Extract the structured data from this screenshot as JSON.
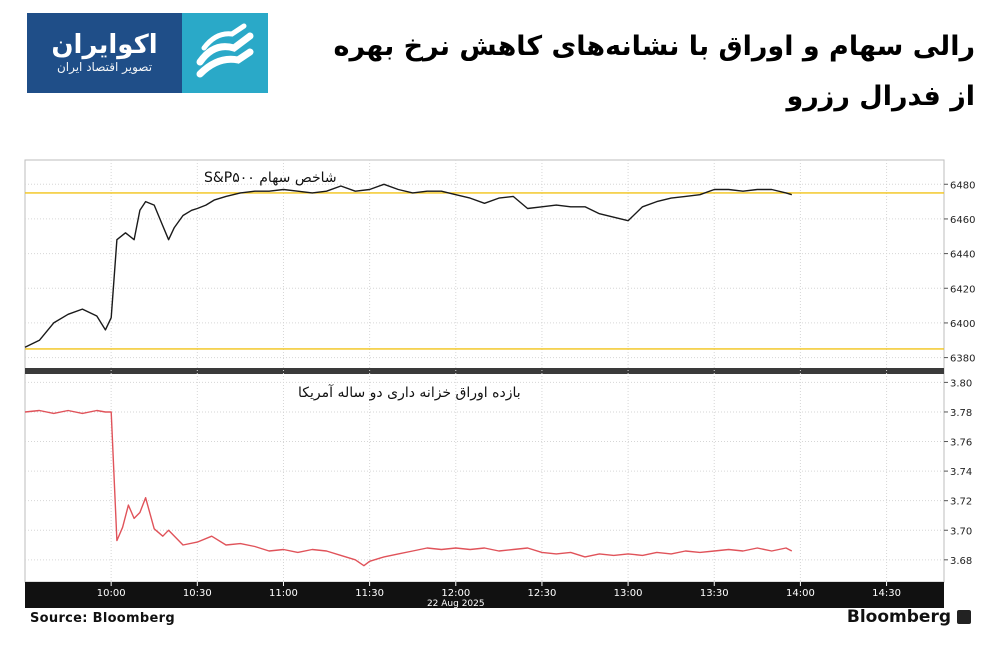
{
  "logo": {
    "name": "اکوایران",
    "tagline": "تصویر اقتصاد ایران"
  },
  "headline": {
    "line1": "رالی سهام و اوراق با نشانه‌های کاهش نرخ بهره",
    "line2": "از فدرال رزرو"
  },
  "footer": {
    "source": "Source:  Bloomberg",
    "brand": "Bloomberg"
  },
  "colors": {
    "spx_line": "#1a1a1a",
    "yield_line": "#e0535a",
    "reference_line": "#f2c418",
    "axis_bar": "#111111",
    "logo_dark": "#1f4e88",
    "logo_light": "#2aa9c8"
  },
  "chart_data": [
    {
      "type": "line",
      "title": "شاخص سهام S&P۵۰۰",
      "x_label": "22 Aug 2025",
      "x_ticks": [
        "10:00",
        "10:30",
        "11:00",
        "11:30",
        "12:00",
        "12:30",
        "13:00",
        "13:30",
        "14:00",
        "14:30"
      ],
      "ylim": [
        6374,
        6494
      ],
      "y_ticks": [
        6380,
        6400,
        6420,
        6440,
        6460,
        6480
      ],
      "reference_lines": [
        6475,
        6385
      ],
      "grid": true,
      "series": [
        {
          "x": [
            "09:30",
            "09:35",
            "09:40",
            "09:45",
            "09:50",
            "09:55",
            "09:58",
            "10:00",
            "10:02",
            "10:05",
            "10:08",
            "10:10",
            "10:12",
            "10:15",
            "10:18",
            "10:20",
            "10:22",
            "10:25",
            "10:28",
            "10:30",
            "10:33",
            "10:36",
            "10:40",
            "10:45",
            "10:50",
            "10:55",
            "11:00",
            "11:05",
            "11:10",
            "11:15",
            "11:20",
            "11:25",
            "11:30",
            "11:35",
            "11:40",
            "11:45",
            "11:50",
            "11:55",
            "12:00",
            "12:05",
            "12:10",
            "12:15",
            "12:20",
            "12:25",
            "12:30",
            "12:35",
            "12:40",
            "12:45",
            "12:50",
            "12:55",
            "13:00",
            "13:05",
            "13:10",
            "13:15",
            "13:20",
            "13:25",
            "13:30",
            "13:35",
            "13:40",
            "13:45",
            "13:50",
            "13:55",
            "13:57"
          ],
          "values": [
            6386,
            6390,
            6400,
            6405,
            6408,
            6404,
            6396,
            6403,
            6448,
            6452,
            6448,
            6465,
            6470,
            6468,
            6456,
            6448,
            6455,
            6462,
            6465,
            6466,
            6468,
            6471,
            6473,
            6475,
            6476,
            6476,
            6477,
            6476,
            6475,
            6476,
            6479,
            6476,
            6477,
            6480,
            6477,
            6475,
            6476,
            6476,
            6474,
            6472,
            6469,
            6472,
            6473,
            6466,
            6467,
            6468,
            6467,
            6467,
            6463,
            6461,
            6459,
            6467,
            6470,
            6472,
            6473,
            6474,
            6477,
            6477,
            6476,
            6477,
            6477,
            6475,
            6474
          ]
        }
      ]
    },
    {
      "type": "line",
      "title": "بازده اوراق خزانه داری دو ساله آمریکا",
      "x_label": "22 Aug 2025",
      "x_ticks": [
        "10:00",
        "10:30",
        "11:00",
        "11:30",
        "12:00",
        "12:30",
        "13:00",
        "13:30",
        "14:00",
        "14:30"
      ],
      "ylim": [
        3.665,
        3.805
      ],
      "y_ticks": [
        3.68,
        3.7,
        3.72,
        3.74,
        3.76,
        3.78,
        3.8
      ],
      "grid": true,
      "series": [
        {
          "x": [
            "09:30",
            "09:35",
            "09:40",
            "09:45",
            "09:50",
            "09:55",
            "09:58",
            "10:00",
            "10:02",
            "10:04",
            "10:06",
            "10:08",
            "10:10",
            "10:12",
            "10:15",
            "10:18",
            "10:20",
            "10:25",
            "10:30",
            "10:35",
            "10:40",
            "10:45",
            "10:50",
            "10:55",
            "11:00",
            "11:05",
            "11:10",
            "11:15",
            "11:20",
            "11:25",
            "11:28",
            "11:30",
            "11:35",
            "11:40",
            "11:45",
            "11:50",
            "11:55",
            "12:00",
            "12:05",
            "12:10",
            "12:15",
            "12:20",
            "12:25",
            "12:30",
            "12:35",
            "12:40",
            "12:45",
            "12:50",
            "12:55",
            "13:00",
            "13:05",
            "13:10",
            "13:15",
            "13:20",
            "13:25",
            "13:30",
            "13:35",
            "13:40",
            "13:45",
            "13:50",
            "13:55",
            "13:57"
          ],
          "values": [
            3.78,
            3.781,
            3.779,
            3.781,
            3.779,
            3.781,
            3.78,
            3.78,
            3.693,
            3.702,
            3.717,
            3.708,
            3.712,
            3.722,
            3.701,
            3.696,
            3.7,
            3.69,
            3.692,
            3.696,
            3.69,
            3.691,
            3.689,
            3.686,
            3.687,
            3.685,
            3.687,
            3.686,
            3.683,
            3.68,
            3.676,
            3.679,
            3.682,
            3.684,
            3.686,
            3.688,
            3.687,
            3.688,
            3.687,
            3.688,
            3.686,
            3.687,
            3.688,
            3.685,
            3.684,
            3.685,
            3.682,
            3.684,
            3.683,
            3.684,
            3.683,
            3.685,
            3.684,
            3.686,
            3.685,
            3.686,
            3.687,
            3.686,
            3.688,
            3.686,
            3.688,
            3.686
          ]
        }
      ]
    }
  ]
}
